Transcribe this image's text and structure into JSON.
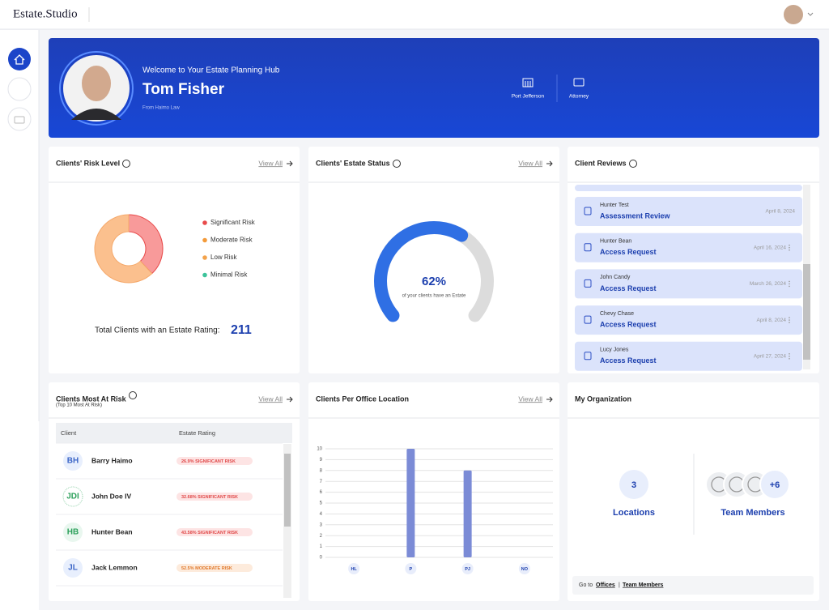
{
  "header": {
    "brand": "Estate.Studio"
  },
  "hero": {
    "greeting": "Welcome to Your Estate Planning Hub",
    "name": "Tom Fisher",
    "firm": "From Haimo Law",
    "location": "Port Jefferson",
    "role": "Attorney"
  },
  "risk": {
    "title": "Clients' Risk Level",
    "view_all": "View All",
    "chart": {
      "type": "pie",
      "categories": [
        "Significant Risk",
        "Moderate Risk",
        "Low Risk",
        "Minimal Risk"
      ],
      "values": [
        38,
        62,
        0,
        0
      ],
      "colors": [
        "#f89a9a",
        "#fbc08e",
        "#f5a54a",
        "#3cc39a"
      ],
      "legend_colors": [
        "#e84a4a",
        "#f39a3a",
        "#f3a24a",
        "#3cc39a"
      ]
    },
    "total_label": "Total Clients with an Estate Rating:",
    "total": 211
  },
  "status": {
    "title": "Clients' Estate Status",
    "view_all": "View All",
    "gauge": {
      "type": "gauge",
      "value": 62,
      "value_label": "62%",
      "max": 100,
      "color": "#2f6fe4",
      "track": "#dcdcdc"
    },
    "caption": "of your clients have an Estate"
  },
  "reviews": {
    "title": "Client Reviews",
    "items": [
      {
        "name": "Hunter Test",
        "type": "Assessment Review",
        "date": "April 8, 2024"
      },
      {
        "name": "Hunter Bean",
        "type": "Access Request",
        "date": "April 16, 2024"
      },
      {
        "name": "John Candy",
        "type": "Access Request",
        "date": "March 26, 2024"
      },
      {
        "name": "Chevy Chase",
        "type": "Access Request",
        "date": "April 8, 2024"
      },
      {
        "name": "Lucy Jones",
        "type": "Access Request",
        "date": "April 27, 2024"
      }
    ]
  },
  "at_risk": {
    "title": "Clients Most At Risk",
    "subtitle": "(Top 10 Most At Risk)",
    "view_all": "View All",
    "table": {
      "headers": [
        "Client",
        "Estate Rating"
      ],
      "rows": [
        {
          "initials": "BH",
          "name": "Barry Haimo",
          "rating": "26.9% SIGNIFICANT RISK"
        },
        {
          "initials": "JDI",
          "name": "John Doe IV",
          "rating": "32.68% SIGNIFICANT RISK"
        },
        {
          "initials": "HB",
          "name": "Hunter Bean",
          "rating": "43.58% SIGNIFICANT RISK"
        },
        {
          "initials": "JL",
          "name": "Jack Lemmon",
          "rating": "52.5% MODERATE RISK"
        }
      ]
    }
  },
  "offices": {
    "title": "Clients Per Office Location",
    "view_all": "View All",
    "chart": {
      "type": "bar",
      "categories": [
        "HL",
        "P",
        "PJ",
        "NO"
      ],
      "values": [
        0,
        10,
        8,
        0
      ],
      "color": "#7b8bd6",
      "ylim": [
        0,
        10
      ],
      "yticks": [
        0,
        1,
        2,
        3,
        4,
        5,
        6,
        7,
        8,
        9,
        10
      ],
      "grid": true
    }
  },
  "org": {
    "title": "My Organization",
    "locations": 3,
    "locations_label": "Locations",
    "team_more": "+6",
    "team_label": "Team Members",
    "footer": {
      "prefix": "Go to",
      "offices": "Offices",
      "separator": "|",
      "team": "Team Members"
    }
  }
}
